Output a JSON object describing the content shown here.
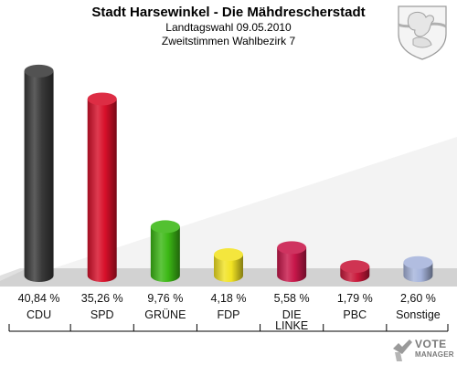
{
  "chart_data": {
    "type": "bar",
    "title": "Stadt Harsewinkel - Die Mähdrescherstadt",
    "subtitle": [
      "Landtagswahl 09.05.2010",
      "Zweitstimmen Wahlbezirk 7"
    ],
    "categories": [
      "CDU",
      "SPD",
      "GRÜNE",
      "FDP",
      "DIE LINKE",
      "PBC",
      "Sonstige"
    ],
    "category_lines": [
      [
        "CDU"
      ],
      [
        "SPD"
      ],
      [
        "GRÜNE"
      ],
      [
        "FDP"
      ],
      [
        "DIE",
        "LINKE"
      ],
      [
        "PBC"
      ],
      [
        "Sonstige"
      ]
    ],
    "values": [
      40.84,
      35.26,
      9.76,
      4.18,
      5.58,
      1.79,
      2.6
    ],
    "value_labels": [
      "40,84 %",
      "35,26 %",
      "9,76 %",
      "4,18 %",
      "5,58 %",
      "1,79 %",
      "2,60 %"
    ],
    "colors": [
      "#3a3a3a",
      "#d8102a",
      "#3cb815",
      "#f2e323",
      "#c8174a",
      "#c8183a",
      "#a6b4dc"
    ],
    "ylim": [
      0,
      43
    ]
  },
  "watermark": {
    "line1": "VOTE",
    "line2": "MANAGER"
  }
}
